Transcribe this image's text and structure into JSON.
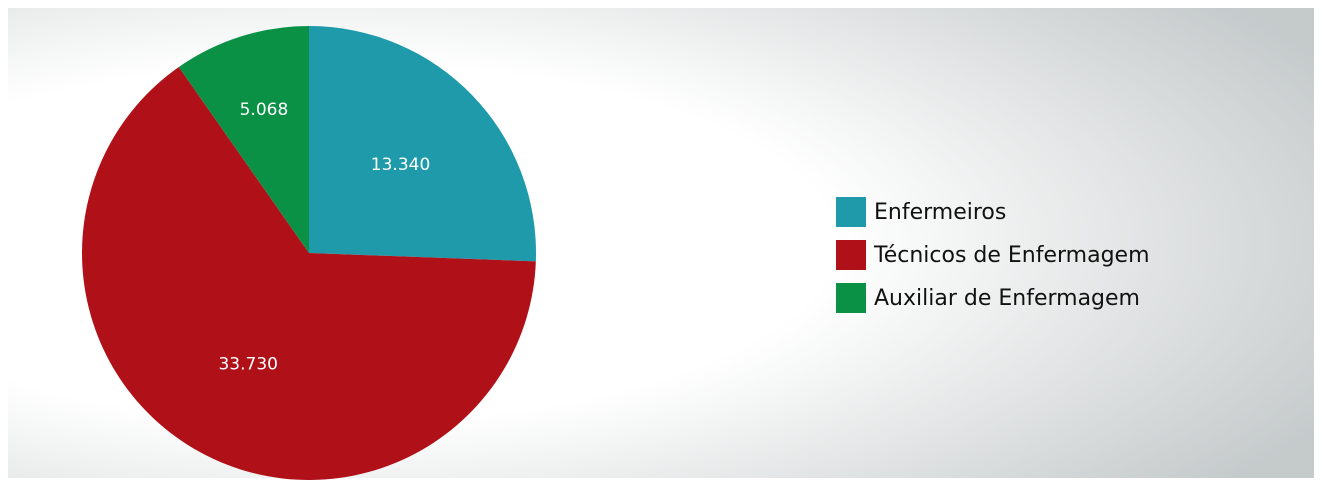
{
  "chart_data": {
    "type": "pie",
    "categories": [
      "Enfermeiros",
      "Técnicos de Enfermagem",
      "Auxiliar de Enfermagem"
    ],
    "values": [
      13340,
      33730,
      5068
    ],
    "value_labels": [
      "13.340",
      "33.730",
      "5.068"
    ],
    "colors": [
      "#1e9aab",
      "#b01118",
      "#0a9146"
    ],
    "legend": "right"
  }
}
